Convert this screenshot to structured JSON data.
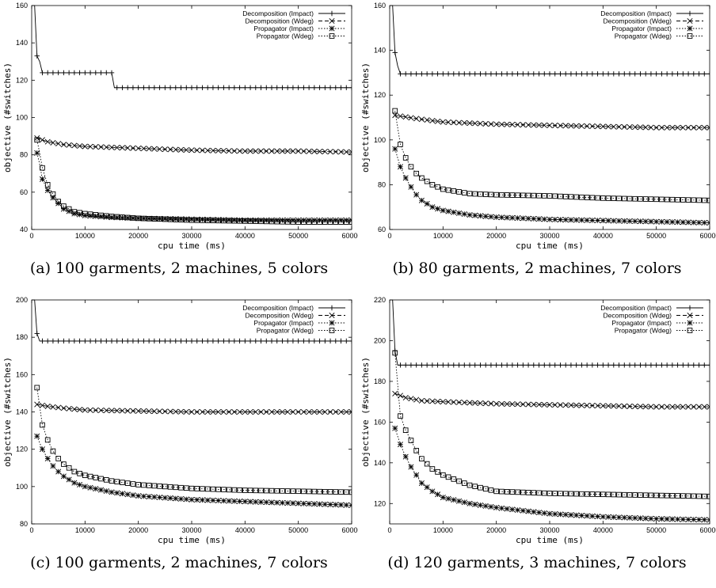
{
  "legend": [
    "Decomposition (Impact)",
    "Decomposition (Wdeg)",
    "Propagator (Impact)",
    "Propagator (Wdeg)"
  ],
  "chart_data": [
    {
      "type": "line",
      "caption": "(a) 100 garments, 2 machines, 5 colors",
      "xlabel": "cpu time (ms)",
      "ylabel": "objective (#switches)",
      "xlim": [
        0,
        60000
      ],
      "ylim": [
        40,
        160
      ],
      "xticks": [
        0,
        10000,
        20000,
        30000,
        40000,
        50000,
        60000
      ],
      "yticks": [
        40,
        60,
        80,
        100,
        120,
        140,
        160
      ],
      "legend_position": "top-right",
      "grid": false,
      "series": [
        {
          "name": "Decomposition (Impact)",
          "marker": "plus",
          "dash": "",
          "points": [
            [
              550,
              160
            ],
            [
              1000,
              133
            ],
            [
              1500,
              130
            ],
            [
              2000,
              124
            ],
            [
              15000,
              124
            ],
            [
              15500,
              116
            ],
            [
              60000,
              116
            ]
          ]
        },
        {
          "name": "Decomposition (Wdeg)",
          "marker": "x",
          "dash": "5,3",
          "points": [
            [
              1000,
              89
            ],
            [
              3000,
              87
            ],
            [
              6000,
              85.5
            ],
            [
              10000,
              84.5
            ],
            [
              20000,
              83.5
            ],
            [
              30000,
              82.5
            ],
            [
              40000,
              82
            ],
            [
              50000,
              82
            ],
            [
              60000,
              81.5
            ]
          ]
        },
        {
          "name": "Propagator (Impact)",
          "marker": "star",
          "dash": "1.5,2",
          "points": [
            [
              1000,
              81
            ],
            [
              1500,
              75
            ],
            [
              2000,
              67
            ],
            [
              3000,
              61
            ],
            [
              4000,
              57
            ],
            [
              5000,
              54
            ],
            [
              6000,
              51
            ],
            [
              8000,
              48.5
            ],
            [
              10000,
              47.5
            ],
            [
              15000,
              46.5
            ],
            [
              20000,
              46
            ],
            [
              30000,
              45.5
            ],
            [
              40000,
              45
            ],
            [
              50000,
              45
            ],
            [
              60000,
              45
            ]
          ]
        },
        {
          "name": "Propagator (Wdeg)",
          "marker": "square",
          "dash": "1.5,2",
          "points": [
            [
              1000,
              88
            ],
            [
              1500,
              81
            ],
            [
              2000,
              73
            ],
            [
              3000,
              64
            ],
            [
              4000,
              59
            ],
            [
              5000,
              55
            ],
            [
              6000,
              52.5
            ],
            [
              8000,
              49.5
            ],
            [
              10000,
              48.5
            ],
            [
              15000,
              47
            ],
            [
              20000,
              46
            ],
            [
              30000,
              45
            ],
            [
              40000,
              44.5
            ],
            [
              50000,
              44
            ],
            [
              60000,
              44
            ]
          ]
        }
      ]
    },
    {
      "type": "line",
      "caption": "(b) 80 garments, 2 machines, 7 colors",
      "xlabel": "cpu time (ms)",
      "ylabel": "objective (#switches)",
      "xlim": [
        0,
        60000
      ],
      "ylim": [
        60,
        160
      ],
      "xticks": [
        0,
        10000,
        20000,
        30000,
        40000,
        50000,
        60000
      ],
      "yticks": [
        60,
        80,
        100,
        120,
        140,
        160
      ],
      "legend_position": "top-right",
      "grid": false,
      "series": [
        {
          "name": "Decomposition (Impact)",
          "marker": "plus",
          "dash": "",
          "points": [
            [
              550,
              160
            ],
            [
              1000,
              139
            ],
            [
              1500,
              133
            ],
            [
              2000,
              129.5
            ],
            [
              60000,
              129.5
            ]
          ]
        },
        {
          "name": "Decomposition (Wdeg)",
          "marker": "x",
          "dash": "5,3",
          "points": [
            [
              1000,
              111
            ],
            [
              5000,
              109.5
            ],
            [
              10000,
              108
            ],
            [
              20000,
              107
            ],
            [
              30000,
              106.5
            ],
            [
              40000,
              106
            ],
            [
              50000,
              105.5
            ],
            [
              60000,
              105.5
            ]
          ]
        },
        {
          "name": "Propagator (Impact)",
          "marker": "star",
          "dash": "1.5,2",
          "points": [
            [
              1000,
              96
            ],
            [
              2000,
              88
            ],
            [
              3000,
              83
            ],
            [
              4000,
              79
            ],
            [
              5000,
              75.5
            ],
            [
              6000,
              73
            ],
            [
              8000,
              70
            ],
            [
              10000,
              68.5
            ],
            [
              15000,
              66.5
            ],
            [
              20000,
              65.5
            ],
            [
              30000,
              64.5
            ],
            [
              40000,
              64
            ],
            [
              50000,
              63.5
            ],
            [
              60000,
              63
            ]
          ]
        },
        {
          "name": "Propagator (Wdeg)",
          "marker": "square",
          "dash": "1.5,2",
          "points": [
            [
              1000,
              113
            ],
            [
              2000,
              98
            ],
            [
              3000,
              92
            ],
            [
              4000,
              88
            ],
            [
              5000,
              85
            ],
            [
              6000,
              83
            ],
            [
              8000,
              80
            ],
            [
              10000,
              78
            ],
            [
              15000,
              76
            ],
            [
              20000,
              75.5
            ],
            [
              30000,
              75
            ],
            [
              40000,
              74
            ],
            [
              50000,
              73.5
            ],
            [
              60000,
              73
            ]
          ]
        }
      ]
    },
    {
      "type": "line",
      "caption": "(c) 100 garments, 2 machines, 7 colors",
      "xlabel": "cpu time (ms)",
      "ylabel": "objective (#switches)",
      "xlim": [
        0,
        60000
      ],
      "ylim": [
        80,
        200
      ],
      "xticks": [
        0,
        10000,
        20000,
        30000,
        40000,
        50000,
        60000
      ],
      "yticks": [
        80,
        100,
        120,
        140,
        160,
        180,
        200
      ],
      "legend_position": "top-right",
      "grid": false,
      "series": [
        {
          "name": "Decomposition (Impact)",
          "marker": "plus",
          "dash": "",
          "points": [
            [
              550,
              200
            ],
            [
              1000,
              182
            ],
            [
              1500,
              178
            ],
            [
              60000,
              178
            ]
          ]
        },
        {
          "name": "Decomposition (Wdeg)",
          "marker": "x",
          "dash": "5,3",
          "points": [
            [
              1000,
              144
            ],
            [
              3000,
              143
            ],
            [
              6000,
              142
            ],
            [
              10000,
              141
            ],
            [
              20000,
              140.5
            ],
            [
              30000,
              140
            ],
            [
              40000,
              140
            ],
            [
              50000,
              140
            ],
            [
              60000,
              140
            ]
          ]
        },
        {
          "name": "Propagator (Impact)",
          "marker": "star",
          "dash": "1.5,2",
          "points": [
            [
              1000,
              127
            ],
            [
              2000,
              120
            ],
            [
              3000,
              115
            ],
            [
              4000,
              111
            ],
            [
              5000,
              108
            ],
            [
              6000,
              105.5
            ],
            [
              8000,
              102
            ],
            [
              10000,
              100
            ],
            [
              15000,
              97
            ],
            [
              20000,
              95
            ],
            [
              30000,
              93
            ],
            [
              40000,
              92
            ],
            [
              50000,
              91
            ],
            [
              60000,
              90
            ]
          ]
        },
        {
          "name": "Propagator (Wdeg)",
          "marker": "square",
          "dash": "1.5,2",
          "points": [
            [
              1000,
              153
            ],
            [
              2000,
              133
            ],
            [
              3000,
              125
            ],
            [
              4000,
              119
            ],
            [
              5000,
              115
            ],
            [
              6000,
              112
            ],
            [
              8000,
              108
            ],
            [
              10000,
              106
            ],
            [
              15000,
              103
            ],
            [
              20000,
              101
            ],
            [
              30000,
              99
            ],
            [
              40000,
              98
            ],
            [
              50000,
              97.5
            ],
            [
              60000,
              97
            ]
          ]
        }
      ]
    },
    {
      "type": "line",
      "caption": "(d) 120 garments, 3 machines, 7 colors",
      "xlabel": "cpu time (ms)",
      "ylabel": "objective (#switches)",
      "xlim": [
        0,
        60000
      ],
      "ylim": [
        110,
        220
      ],
      "xticks": [
        0,
        10000,
        20000,
        30000,
        40000,
        50000,
        60000
      ],
      "yticks": [
        120,
        140,
        160,
        180,
        200,
        220
      ],
      "legend_position": "top-right",
      "grid": false,
      "series": [
        {
          "name": "Decomposition (Impact)",
          "marker": "plus",
          "dash": "",
          "points": [
            [
              550,
              220
            ],
            [
              1000,
              195
            ],
            [
              1500,
              188
            ],
            [
              60000,
              188
            ]
          ]
        },
        {
          "name": "Decomposition (Wdeg)",
          "marker": "x",
          "dash": "5,3",
          "points": [
            [
              1000,
              174
            ],
            [
              3000,
              172
            ],
            [
              6000,
              170.5
            ],
            [
              10000,
              170
            ],
            [
              20000,
              169
            ],
            [
              30000,
              168.5
            ],
            [
              40000,
              168
            ],
            [
              50000,
              167.5
            ],
            [
              60000,
              167.5
            ]
          ]
        },
        {
          "name": "Propagator (Impact)",
          "marker": "star",
          "dash": "1.5,2",
          "points": [
            [
              1000,
              157
            ],
            [
              2000,
              149
            ],
            [
              3000,
              143
            ],
            [
              4000,
              138
            ],
            [
              5000,
              134
            ],
            [
              6000,
              130
            ],
            [
              8000,
              126
            ],
            [
              10000,
              123
            ],
            [
              15000,
              120
            ],
            [
              20000,
              118
            ],
            [
              30000,
              115
            ],
            [
              40000,
              113.5
            ],
            [
              50000,
              112.5
            ],
            [
              60000,
              112
            ]
          ]
        },
        {
          "name": "Propagator (Wdeg)",
          "marker": "square",
          "dash": "1.5,2",
          "points": [
            [
              1000,
              194
            ],
            [
              2000,
              163
            ],
            [
              3000,
              156
            ],
            [
              4000,
              151
            ],
            [
              5000,
              146
            ],
            [
              6000,
              142
            ],
            [
              8000,
              137
            ],
            [
              10000,
              134
            ],
            [
              15000,
              129
            ],
            [
              20000,
              126
            ],
            [
              30000,
              125
            ],
            [
              40000,
              124.5
            ],
            [
              50000,
              124
            ],
            [
              60000,
              123.5
            ]
          ]
        }
      ]
    }
  ]
}
